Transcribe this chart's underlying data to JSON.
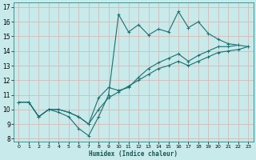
{
  "xlabel": "Humidex (Indice chaleur)",
  "background_color": "#c8eaea",
  "grid_color": "#d8b8b8",
  "line_color": "#1a7070",
  "xlim": [
    -0.5,
    23.5
  ],
  "ylim": [
    7.8,
    17.3
  ],
  "xticks": [
    0,
    1,
    2,
    3,
    4,
    5,
    6,
    7,
    8,
    9,
    10,
    11,
    12,
    13,
    14,
    15,
    16,
    17,
    18,
    19,
    20,
    21,
    22,
    23
  ],
  "yticks": [
    8,
    9,
    10,
    11,
    12,
    13,
    14,
    15,
    16,
    17
  ],
  "line1_x": [
    0,
    1,
    2,
    3,
    4,
    5,
    6,
    7,
    8,
    9,
    10,
    11,
    12,
    13,
    14,
    15,
    16,
    17,
    18,
    19,
    20,
    21,
    22
  ],
  "line1_y": [
    10.5,
    10.5,
    9.5,
    10.0,
    9.8,
    9.5,
    8.7,
    8.2,
    9.5,
    11.0,
    16.5,
    15.3,
    15.8,
    15.1,
    15.5,
    15.3,
    16.7,
    15.6,
    16.0,
    15.2,
    14.8,
    14.5,
    14.4
  ],
  "line2_x": [
    0,
    1,
    2,
    3,
    4,
    5,
    6,
    7,
    8,
    9,
    10,
    11,
    12,
    13,
    14,
    15,
    16,
    17,
    18,
    19,
    20,
    21,
    22,
    23
  ],
  "line2_y": [
    10.5,
    10.5,
    9.5,
    10.0,
    10.0,
    9.8,
    9.5,
    9.0,
    10.8,
    11.5,
    11.3,
    11.5,
    12.2,
    12.8,
    13.2,
    13.5,
    13.8,
    13.3,
    13.7,
    14.0,
    14.3,
    14.3,
    14.4,
    14.3
  ],
  "line3_x": [
    0,
    1,
    2,
    3,
    4,
    5,
    6,
    7,
    8,
    9,
    10,
    11,
    12,
    13,
    14,
    15,
    16,
    17,
    18,
    19,
    20,
    21,
    22,
    23
  ],
  "line3_y": [
    10.5,
    10.5,
    9.5,
    10.0,
    10.0,
    9.8,
    9.5,
    9.0,
    10.0,
    10.8,
    11.2,
    11.6,
    12.0,
    12.4,
    12.8,
    13.0,
    13.3,
    13.0,
    13.3,
    13.6,
    13.9,
    14.0,
    14.1,
    14.3
  ]
}
